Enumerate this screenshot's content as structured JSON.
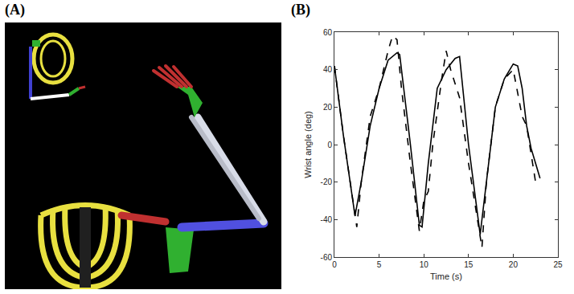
{
  "panel_labels": [
    "(A)",
    "(B)"
  ],
  "chart_data": {
    "type": "line",
    "x_label": "Time (s)",
    "y_label": "Wrist angle (deg)",
    "xlim": [
      0,
      25
    ],
    "xticks": [
      0,
      5,
      10,
      15,
      20,
      25
    ],
    "ylim": [
      -60,
      60
    ],
    "yticks": [
      -60,
      -40,
      -20,
      0,
      20,
      40,
      60
    ],
    "grid": false,
    "series": [
      {
        "color": "#000000",
        "line_style": "solid",
        "x": [
          0,
          1,
          2.3,
          3,
          4,
          5,
          6,
          7,
          7.3,
          8.5,
          9.5,
          9.8,
          10.5,
          11.5,
          12.5,
          13.5,
          14,
          15,
          16.3,
          17,
          18,
          19,
          20,
          20.5,
          21,
          21.5,
          22,
          22.5,
          23
        ],
        "values": [
          42,
          5,
          -38,
          -20,
          10,
          30,
          45,
          49,
          48,
          0,
          -43,
          -44,
          -10,
          30,
          40,
          46,
          47,
          0,
          -48,
          -20,
          20,
          35,
          43,
          42,
          30,
          10,
          -2,
          -10,
          -18
        ]
      },
      {
        "color": "#000000",
        "line_style": "dashed",
        "x": [
          0,
          1,
          2.5,
          3,
          4,
          5,
          6,
          6.5,
          7,
          7.5,
          8.5,
          9.5,
          10,
          10.5,
          11,
          12,
          12.5,
          13,
          14,
          15,
          16.5,
          17,
          18,
          19,
          20,
          21,
          21.5,
          22.5
        ],
        "values": [
          42,
          5,
          -44,
          -20,
          15,
          30,
          50,
          58,
          56,
          30,
          -10,
          -46,
          -30,
          -25,
          0,
          35,
          50,
          40,
          25,
          -10,
          -55,
          -20,
          20,
          35,
          40,
          15,
          10,
          -20
        ]
      }
    ]
  }
}
